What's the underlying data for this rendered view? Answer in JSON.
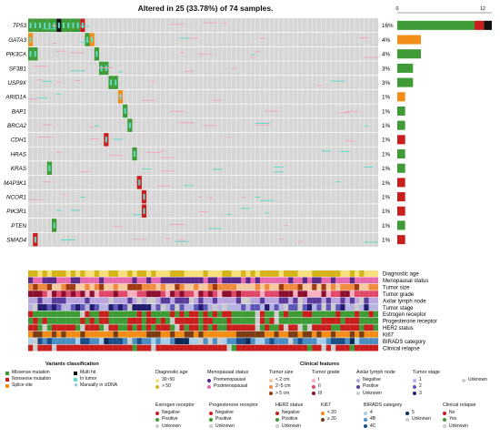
{
  "chart_data": {
    "type": "heatmap",
    "title": "Altered in 25 (33.78%) of 74 samples.",
    "genes": [
      "TP53",
      "GATA3",
      "PIK3CA",
      "SF3B1",
      "USP9X",
      "ARID1A",
      "BAP1",
      "BRCA2",
      "CDH1",
      "HRAS",
      "KRAS",
      "MAP3K1",
      "NCOR1",
      "PIK3R1",
      "PTEN",
      "SMAD4"
    ],
    "percentages": [
      "16%",
      "4%",
      "4%",
      "3%",
      "3%",
      "1%",
      "1%",
      "1%",
      "1%",
      "1%",
      "1%",
      "1%",
      "1%",
      "1%",
      "1%",
      "1%"
    ],
    "bar_axis": {
      "ticks": [
        "0",
        "12"
      ],
      "max": 12
    },
    "bar_counts": [
      12,
      3,
      3,
      2,
      2,
      1,
      1,
      1,
      1,
      1,
      1,
      1,
      1,
      1,
      1,
      1
    ],
    "bar_colors": [
      [
        "#3e9b35",
        "#c81e1e",
        "#111111"
      ],
      [
        "#f28d17"
      ],
      [
        "#3e9b35"
      ],
      [
        "#3e9b35"
      ],
      [
        "#3e9b35"
      ],
      [
        "#f28d17"
      ],
      [
        "#3e9b35"
      ],
      [
        "#3e9b35"
      ],
      [
        "#c81e1e"
      ],
      [
        "#3e9b35"
      ],
      [
        "#3e9b35"
      ],
      [
        "#c81e1e"
      ],
      [
        "#c81e1e"
      ],
      [
        "#c81e1e"
      ],
      [
        "#3e9b35"
      ],
      [
        "#c81e1e"
      ]
    ],
    "num_samples": 74,
    "mutations": [
      {
        "gene": 0,
        "sample": 0,
        "type": "missense"
      },
      {
        "gene": 0,
        "sample": 1,
        "type": "missense"
      },
      {
        "gene": 0,
        "sample": 2,
        "type": "missense"
      },
      {
        "gene": 0,
        "sample": 3,
        "type": "missense"
      },
      {
        "gene": 0,
        "sample": 4,
        "type": "missense"
      },
      {
        "gene": 0,
        "sample": 5,
        "type": "missense"
      },
      {
        "gene": 0,
        "sample": 6,
        "type": "multi"
      },
      {
        "gene": 0,
        "sample": 7,
        "type": "missense"
      },
      {
        "gene": 0,
        "sample": 8,
        "type": "missense"
      },
      {
        "gene": 0,
        "sample": 9,
        "type": "missense"
      },
      {
        "gene": 0,
        "sample": 10,
        "type": "missense"
      },
      {
        "gene": 0,
        "sample": 11,
        "type": "nonsense"
      },
      {
        "gene": 1,
        "sample": 0,
        "type": "splice"
      },
      {
        "gene": 1,
        "sample": 12,
        "type": "missense"
      },
      {
        "gene": 1,
        "sample": 13,
        "type": "splice"
      },
      {
        "gene": 2,
        "sample": 0,
        "type": "missense"
      },
      {
        "gene": 2,
        "sample": 1,
        "type": "missense"
      },
      {
        "gene": 2,
        "sample": 14,
        "type": "missense"
      },
      {
        "gene": 3,
        "sample": 15,
        "type": "missense"
      },
      {
        "gene": 3,
        "sample": 16,
        "type": "missense"
      },
      {
        "gene": 4,
        "sample": 17,
        "type": "missense"
      },
      {
        "gene": 4,
        "sample": 18,
        "type": "missense"
      },
      {
        "gene": 5,
        "sample": 19,
        "type": "splice"
      },
      {
        "gene": 6,
        "sample": 20,
        "type": "missense"
      },
      {
        "gene": 7,
        "sample": 21,
        "type": "missense"
      },
      {
        "gene": 8,
        "sample": 16,
        "type": "nonsense"
      },
      {
        "gene": 9,
        "sample": 22,
        "type": "missense"
      },
      {
        "gene": 10,
        "sample": 4,
        "type": "missense"
      },
      {
        "gene": 11,
        "sample": 23,
        "type": "nonsense"
      },
      {
        "gene": 12,
        "sample": 24,
        "type": "nonsense"
      },
      {
        "gene": 13,
        "sample": 24,
        "type": "nonsense"
      },
      {
        "gene": 14,
        "sample": 5,
        "type": "missense"
      },
      {
        "gene": 15,
        "sample": 1,
        "type": "nonsense"
      }
    ],
    "clinical_tracks": [
      "Diagnostic age",
      "Menopausal status",
      "Tumor size",
      "Tumor grade",
      "Axilar lymph node",
      "Tumor stage",
      "Estrogen receptor",
      "Progesterone receptor",
      "HER2 status",
      "Ki67",
      "BIRADS category",
      "Clinical relapse"
    ]
  },
  "colors": {
    "missense": "#3e9b35",
    "nonsense": "#c81e1e",
    "splice": "#f28d17",
    "multi": "#111111",
    "tumor": "#60dcc6",
    "ctdna": "#2a9ad6",
    "grid": "#d6d6d6",
    "pink": "#f4a6c6"
  },
  "legend": {
    "variants_title": "Variants classification",
    "clinical_title": "Clinical features",
    "variants": [
      {
        "label": "Missense mutation",
        "color": "#3e9b35",
        "shape": "square"
      },
      {
        "label": "Nonsense mutation",
        "color": "#c81e1e",
        "shape": "square"
      },
      {
        "label": "Splice site",
        "color": "#f28d17",
        "shape": "square"
      },
      {
        "label": "Multi hit",
        "color": "#111111",
        "shape": "square"
      },
      {
        "label": "In tumor",
        "color": "#60dcc6",
        "shape": "square"
      },
      {
        "label": "Manually in ctDNA",
        "color": "#2a9ad6",
        "shape": "x"
      }
    ],
    "row1": [
      {
        "title": "Diagnostic age",
        "items": [
          {
            "label": "30~50",
            "color": "#f7e07c"
          },
          {
            "label": "> 50",
            "color": "#d4b418"
          }
        ]
      },
      {
        "title": "Menopausal status",
        "items": [
          {
            "label": "Premenopausal",
            "color": "#5a2a8a"
          },
          {
            "label": "Postmenopausal",
            "color": "#e66ab0"
          }
        ]
      },
      {
        "title": "Tumor size",
        "items": [
          {
            "label": "< 2 cm",
            "color": "#f6c9a0"
          },
          {
            "label": "2~5 cm",
            "color": "#f08a3c"
          },
          {
            "label": "> 5 cm",
            "color": "#9e3b12"
          }
        ]
      },
      {
        "title": "Tumor grade",
        "items": [
          {
            "label": "I",
            "color": "#f6b0bf"
          },
          {
            "label": "II",
            "color": "#e0486a"
          },
          {
            "label": "III",
            "color": "#8b1030"
          }
        ]
      },
      {
        "title": "Axilar lymph node",
        "items": [
          {
            "label": "Negative",
            "color": "#b9a6df"
          },
          {
            "label": "Positive",
            "color": "#5b3a9e"
          },
          {
            "label": "Unknown",
            "color": "#cccccc"
          }
        ]
      },
      {
        "title": "Tumor stage",
        "items": [
          {
            "label": "1",
            "color": "#b7b3e0"
          },
          {
            "label": "2",
            "color": "#5f57b8"
          },
          {
            "label": "3",
            "color": "#231c6e"
          }
        ]
      },
      {
        "title": "",
        "items": [
          {
            "label": "Unknown",
            "color": "#cccccc"
          }
        ]
      }
    ],
    "row2": [
      {
        "title": "Estrogen receptor",
        "items": [
          {
            "label": "Negative",
            "color": "#c81e1e"
          },
          {
            "label": "Positive",
            "color": "#3e9b35"
          },
          {
            "label": "Unknown",
            "color": "#cccccc"
          }
        ]
      },
      {
        "title": "Progesterone receptor",
        "items": [
          {
            "label": "Negative",
            "color": "#c81e1e"
          },
          {
            "label": "Positive",
            "color": "#3e9b35"
          },
          {
            "label": "Unknown",
            "color": "#cccccc"
          }
        ]
      },
      {
        "title": "HER2 status",
        "items": [
          {
            "label": "Negative",
            "color": "#c81e1e"
          },
          {
            "label": "Positive",
            "color": "#3e9b35"
          },
          {
            "label": "Unknown",
            "color": "#cccccc"
          }
        ]
      },
      {
        "title": "Ki67",
        "items": [
          {
            "label": "< 20",
            "color": "#f28d17"
          },
          {
            "label": "≥ 20",
            "color": "#7a3d12"
          }
        ]
      },
      {
        "title": "BIRADS category",
        "items": [
          {
            "label": "4",
            "color": "#a9cfe8"
          },
          {
            "label": "4B",
            "color": "#4c8fc4"
          },
          {
            "label": "4C",
            "color": "#1c4f8a"
          }
        ]
      },
      {
        "title": "",
        "items": [
          {
            "label": "5",
            "color": "#0c2a55"
          },
          {
            "label": "Unknown",
            "color": "#cccccc"
          }
        ]
      },
      {
        "title": "Clinical relapse",
        "items": [
          {
            "label": "No",
            "color": "#c81e1e"
          },
          {
            "label": "Yes",
            "color": "#3e9b35"
          },
          {
            "label": "Unknown",
            "color": "#cccccc"
          }
        ]
      }
    ]
  }
}
